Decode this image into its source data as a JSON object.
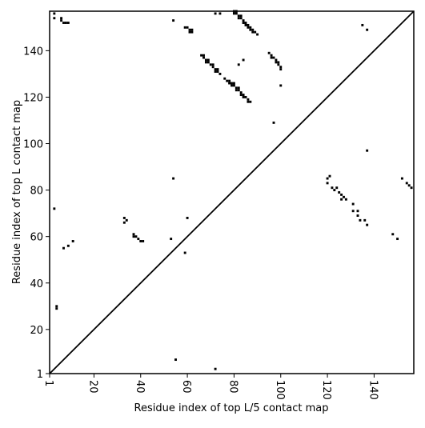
{
  "chart_data": {
    "type": "scatter",
    "x_label": "Residue index of top L/5 contact map",
    "y_label": "Residue index of top L contact map",
    "xlim": [
      1,
      157
    ],
    "ylim": [
      1,
      157
    ],
    "xticks": [
      1,
      20,
      40,
      60,
      80,
      100,
      120,
      140
    ],
    "yticks": [
      1,
      20,
      40,
      60,
      80,
      100,
      120,
      140
    ],
    "color": "#000000",
    "x": [
      3,
      3,
      6,
      6,
      7,
      8,
      9,
      54,
      59,
      60,
      61,
      61,
      62,
      62,
      72,
      74,
      80,
      80,
      81,
      81,
      82,
      82,
      83,
      83,
      84,
      84,
      85,
      85,
      86,
      86,
      87,
      87,
      88,
      88,
      89,
      90,
      82,
      84,
      66,
      67,
      67,
      68,
      68,
      69,
      69,
      70,
      71,
      71,
      72,
      72,
      73,
      73,
      74,
      76,
      77,
      78,
      78,
      79,
      79,
      80,
      80,
      81,
      81,
      82,
      82,
      83,
      83,
      84,
      84,
      85,
      86,
      86,
      87,
      95,
      96,
      96,
      97,
      98,
      98,
      99,
      99,
      100,
      100,
      100,
      97,
      135,
      137,
      137,
      3,
      4,
      4,
      7,
      9,
      11,
      33,
      34,
      33,
      37,
      37,
      38,
      39,
      40,
      41,
      53,
      54,
      59,
      60,
      55,
      72,
      120,
      121,
      120,
      122,
      124,
      123,
      125,
      126,
      126,
      127,
      128,
      131,
      131,
      133,
      133,
      134,
      136,
      137,
      148,
      150,
      152,
      154,
      155,
      156
    ],
    "y": [
      156,
      154,
      154,
      153,
      152,
      152,
      152,
      153,
      150,
      150,
      149,
      148,
      149,
      148,
      156,
      156,
      157,
      156,
      157,
      156,
      155,
      154,
      155,
      154,
      153,
      152,
      152,
      151,
      151,
      150,
      150,
      149,
      149,
      148,
      148,
      147,
      134,
      136,
      138,
      138,
      137,
      136,
      135,
      136,
      135,
      134,
      134,
      133,
      132,
      131,
      132,
      131,
      130,
      128,
      127,
      127,
      126,
      126,
      125,
      126,
      125,
      124,
      123,
      124,
      123,
      122,
      121,
      121,
      120,
      120,
      119,
      118,
      118,
      139,
      138,
      137,
      137,
      136,
      135,
      135,
      134,
      133,
      132,
      125,
      109,
      151,
      149,
      97,
      72,
      30,
      29,
      55,
      56,
      58,
      68,
      67,
      66,
      61,
      60,
      60,
      59,
      58,
      58,
      59,
      85,
      53,
      68,
      7,
      3,
      85,
      86,
      83,
      81,
      81,
      80,
      79,
      78,
      76,
      77,
      76,
      74,
      71,
      71,
      69,
      67,
      67,
      65,
      61,
      59,
      85,
      83,
      82,
      81
    ]
  }
}
